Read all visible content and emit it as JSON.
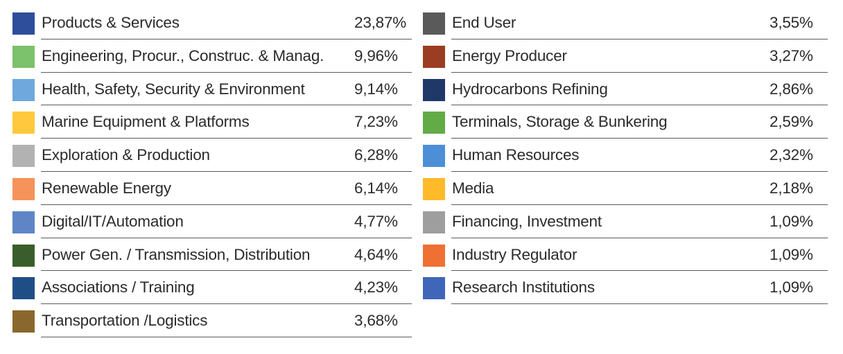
{
  "chart_data": {
    "type": "table",
    "unit": "%",
    "entries": [
      {
        "label": "Products & Services",
        "value": "23,87%",
        "pct": 23.87,
        "color": "#2e4d9b"
      },
      {
        "label": "Engineering, Procur., Construc. & Manag.",
        "value": "9,96%",
        "pct": 9.96,
        "color": "#7cc16b"
      },
      {
        "label": "Health, Safety, Security & Environment",
        "value": "9,14%",
        "pct": 9.14,
        "color": "#6fa8dc"
      },
      {
        "label": "Marine Equipment & Platforms",
        "value": "7,23%",
        "pct": 7.23,
        "color": "#ffc83d"
      },
      {
        "label": "Exploration & Production",
        "value": "6,28%",
        "pct": 6.28,
        "color": "#b2b2b2"
      },
      {
        "label": "Renewable Energy",
        "value": "6,14%",
        "pct": 6.14,
        "color": "#f5935a"
      },
      {
        "label": "Digital/IT/Automation",
        "value": "4,77%",
        "pct": 4.77,
        "color": "#5f85c6"
      },
      {
        "label": "Power Gen. / Transmission, Distribution",
        "value": "4,64%",
        "pct": 4.64,
        "color": "#3a5e2b"
      },
      {
        "label": "Associations / Training",
        "value": "4,23%",
        "pct": 4.23,
        "color": "#1f4e86"
      },
      {
        "label": "Transportation /Logistics",
        "value": "3,68%",
        "pct": 3.68,
        "color": "#8a672c"
      },
      {
        "label": "End User",
        "value": "3,55%",
        "pct": 3.55,
        "color": "#5a5a5a"
      },
      {
        "label": "Energy Producer",
        "value": "3,27%",
        "pct": 3.27,
        "color": "#9b3d22"
      },
      {
        "label": "Hydrocarbons Refining",
        "value": "2,86%",
        "pct": 2.86,
        "color": "#1f3868"
      },
      {
        "label": "Terminals, Storage & Bunkering",
        "value": "2,59%",
        "pct": 2.59,
        "color": "#62ab47"
      },
      {
        "label": "Human Resources",
        "value": "2,32%",
        "pct": 2.32,
        "color": "#4c8fd6"
      },
      {
        "label": "Media",
        "value": "2,18%",
        "pct": 2.18,
        "color": "#ffba2a"
      },
      {
        "label": "Financing, Investment",
        "value": "1,09%",
        "pct": 1.09,
        "color": "#9e9e9e"
      },
      {
        "label": "Industry Regulator",
        "value": "1,09%",
        "pct": 1.09,
        "color": "#ef7032"
      },
      {
        "label": "Research Institutions",
        "value": "1,09%",
        "pct": 1.09,
        "color": "#3f66b8"
      }
    ]
  }
}
